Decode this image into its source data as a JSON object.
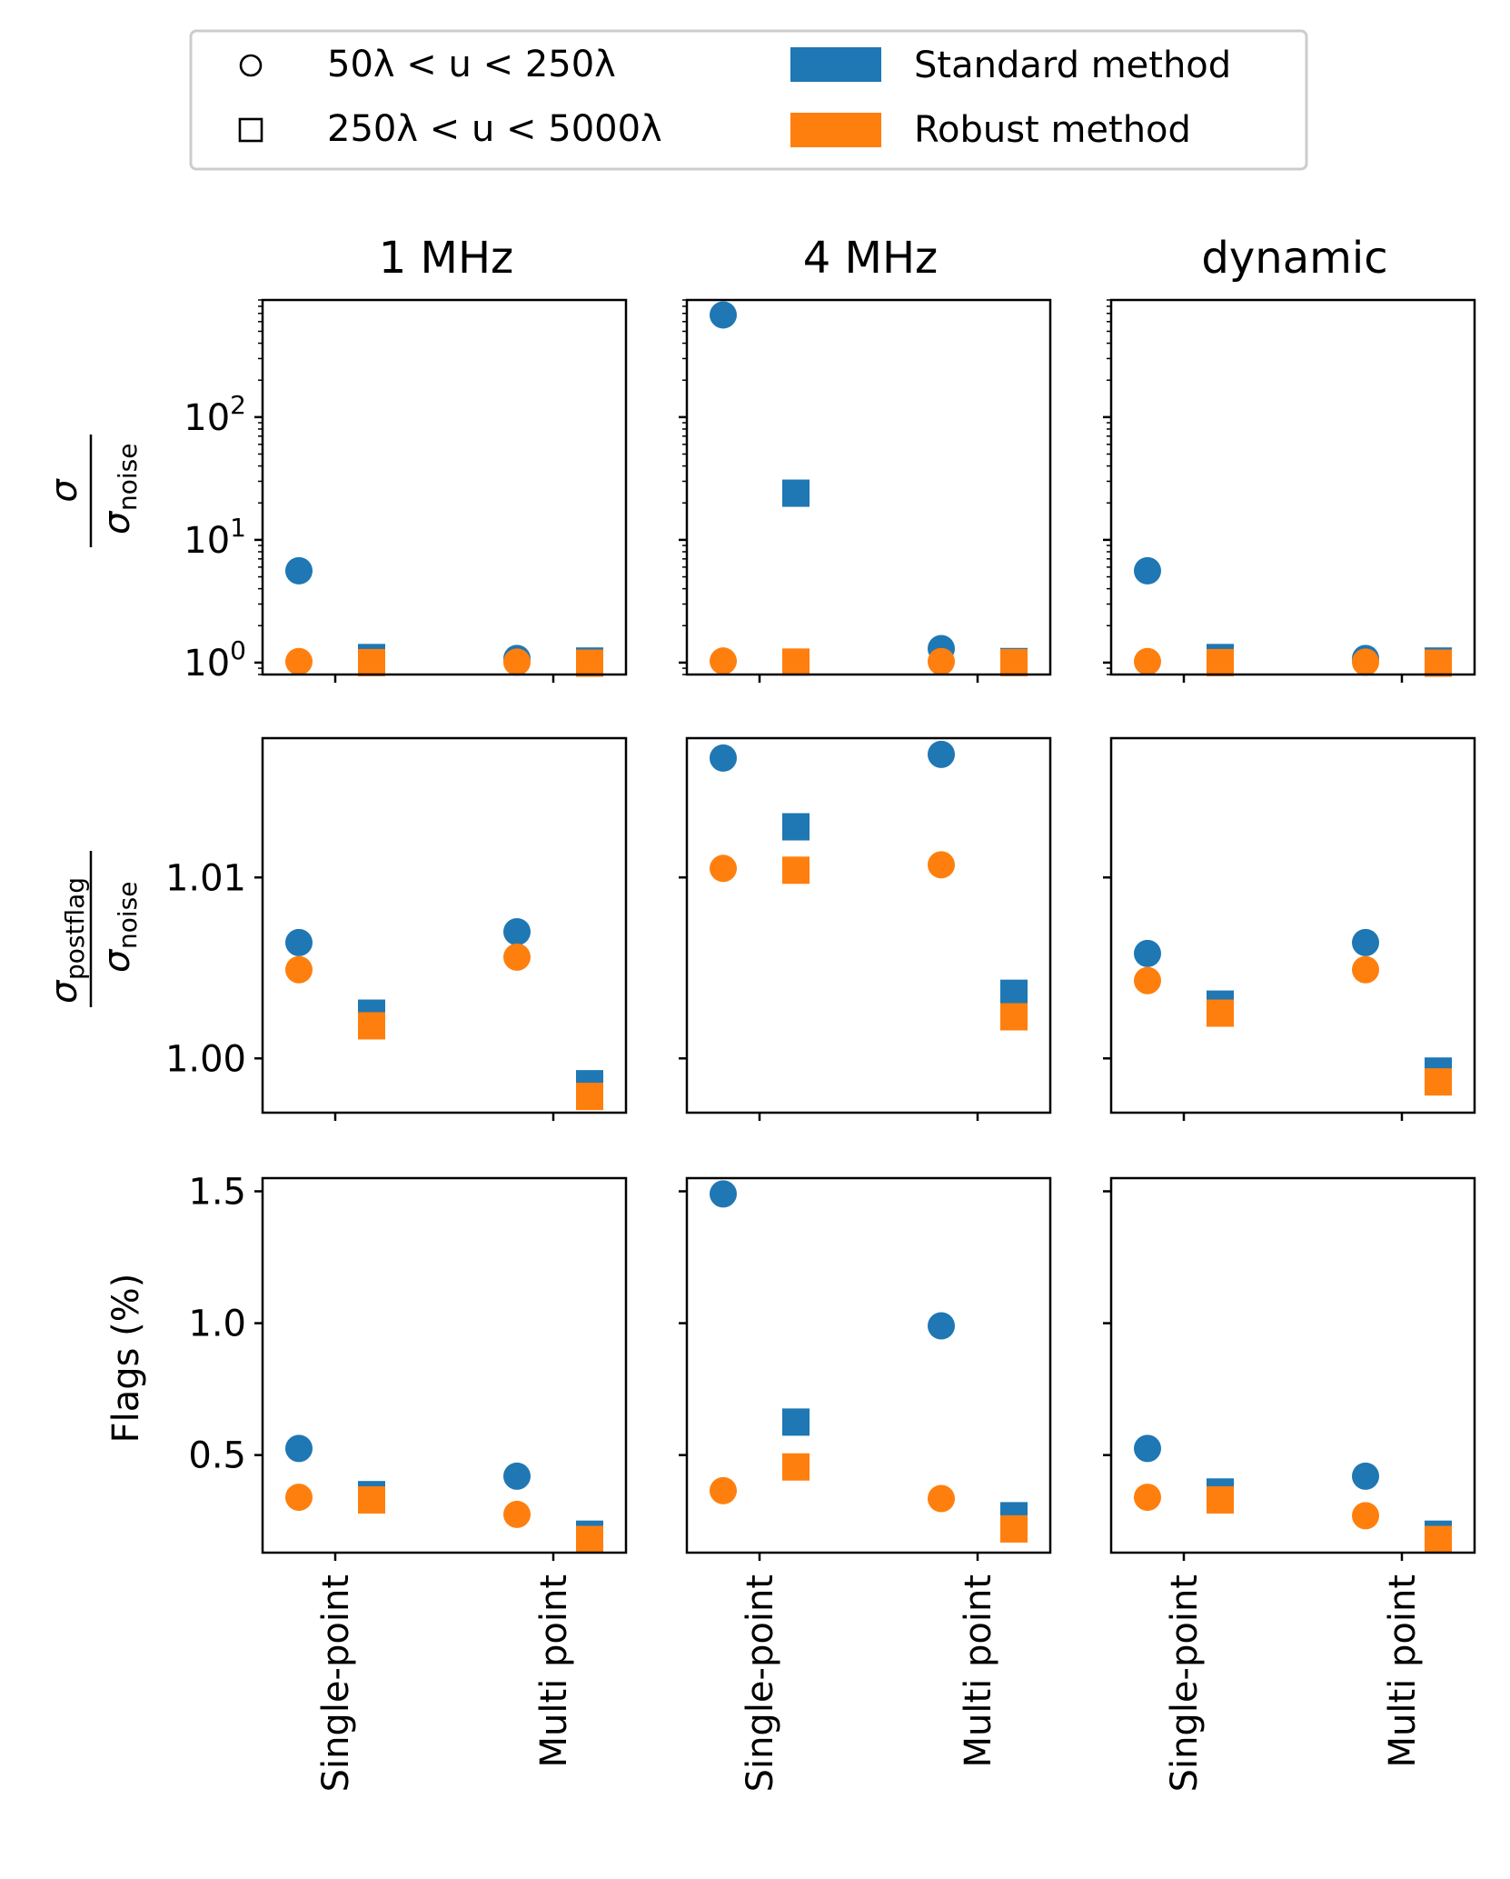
{
  "legend": {
    "entries": [
      {
        "marker": "circle",
        "label": "50λ < u < 250λ"
      },
      {
        "marker": "square",
        "label": "250λ < u < 5000λ"
      },
      {
        "marker": "patch",
        "color": "#1f77b4",
        "label": "Standard method"
      },
      {
        "marker": "patch",
        "color": "#ff7f0e",
        "label": "Robust method"
      }
    ]
  },
  "colors": {
    "standard": "#1f77b4",
    "robust": "#ff7f0e"
  },
  "columns": [
    "1 MHz",
    "4 MHz",
    "dynamic"
  ],
  "rows": [
    {
      "key": "sigma",
      "ylabel_main": "σ",
      "ylabel_main_sub": "",
      "ylabel_den": "σ",
      "ylabel_den_sub": "noise"
    },
    {
      "key": "postflag",
      "ylabel_main": "σ",
      "ylabel_main_sub": "postflag",
      "ylabel_den": "σ",
      "ylabel_den_sub": "noise"
    },
    {
      "key": "flags",
      "ylabel": "Flags (%)"
    }
  ],
  "x_categories": [
    "Single-point",
    "Multi point"
  ],
  "chart_data": [
    {
      "type": "scatter",
      "row": 0,
      "col": 0,
      "title": "1 MHz",
      "yscale": "log",
      "ylim": [
        0.8,
        900
      ],
      "yticks": [
        {
          "value": 1,
          "base": "10",
          "exp": "0"
        },
        {
          "value": 10,
          "base": "10",
          "exp": "1"
        },
        {
          "value": 100,
          "base": "10",
          "exp": "2"
        }
      ],
      "series": [
        {
          "name": "Standard 50λ<u<250λ",
          "marker": "circle",
          "method": "standard",
          "values": [
            5.6,
            1.08
          ]
        },
        {
          "name": "Robust 50λ<u<250λ",
          "marker": "circle",
          "method": "robust",
          "values": [
            1.02,
            1.01
          ]
        },
        {
          "name": "Standard 250λ<u<5000λ",
          "marker": "square",
          "method": "standard",
          "values": [
            1.1,
            1.03
          ]
        },
        {
          "name": "Robust 250λ<u<5000λ",
          "marker": "square",
          "method": "robust",
          "values": [
            1.0,
            0.99
          ]
        }
      ]
    },
    {
      "type": "scatter",
      "row": 0,
      "col": 1,
      "title": "4 MHz",
      "yscale": "log",
      "ylim": [
        0.8,
        900
      ],
      "yticks": [
        {
          "value": 1,
          "base": "10",
          "exp": "0"
        },
        {
          "value": 10,
          "base": "10",
          "exp": "1"
        },
        {
          "value": 100,
          "base": "10",
          "exp": "2"
        }
      ],
      "series": [
        {
          "name": "Standard 50λ<u<250λ",
          "marker": "circle",
          "method": "standard",
          "values": [
            680,
            1.3
          ]
        },
        {
          "name": "Robust 50λ<u<250λ",
          "marker": "circle",
          "method": "robust",
          "values": [
            1.03,
            1.02
          ]
        },
        {
          "name": "Standard 250λ<u<5000λ",
          "marker": "square",
          "method": "standard",
          "values": [
            24,
            1.02
          ]
        },
        {
          "name": "Robust 250λ<u<5000λ",
          "marker": "square",
          "method": "robust",
          "values": [
            1.01,
            1.0
          ]
        }
      ]
    },
    {
      "type": "scatter",
      "row": 0,
      "col": 2,
      "title": "dynamic",
      "yscale": "log",
      "ylim": [
        0.8,
        900
      ],
      "yticks": [
        {
          "value": 1,
          "base": "10",
          "exp": "0"
        },
        {
          "value": 10,
          "base": "10",
          "exp": "1"
        },
        {
          "value": 100,
          "base": "10",
          "exp": "2"
        }
      ],
      "series": [
        {
          "name": "Standard 50λ<u<250λ",
          "marker": "circle",
          "method": "standard",
          "values": [
            5.6,
            1.08
          ]
        },
        {
          "name": "Robust 50λ<u<250λ",
          "marker": "circle",
          "method": "robust",
          "values": [
            1.02,
            1.01
          ]
        },
        {
          "name": "Standard 250λ<u<5000λ",
          "marker": "square",
          "method": "standard",
          "values": [
            1.1,
            1.03
          ]
        },
        {
          "name": "Robust 250λ<u<5000λ",
          "marker": "square",
          "method": "robust",
          "values": [
            1.0,
            0.99
          ]
        }
      ]
    },
    {
      "type": "scatter",
      "row": 1,
      "col": 0,
      "yscale": "linear",
      "ylim": [
        0.997,
        1.0177
      ],
      "yticks": [
        {
          "value": 1.0,
          "label": "1.00"
        },
        {
          "value": 1.01,
          "label": "1.01"
        }
      ],
      "series": [
        {
          "name": "Standard 50λ<u<250λ",
          "marker": "circle",
          "method": "standard",
          "values": [
            1.0064,
            1.007
          ]
        },
        {
          "name": "Robust 50λ<u<250λ",
          "marker": "circle",
          "method": "robust",
          "values": [
            1.0049,
            1.0056
          ]
        },
        {
          "name": "Standard 250λ<u<5000λ",
          "marker": "square",
          "method": "standard",
          "values": [
            1.0025,
            0.9986
          ]
        },
        {
          "name": "Robust 250λ<u<5000λ",
          "marker": "square",
          "method": "robust",
          "values": [
            1.0018,
            0.9979
          ]
        }
      ]
    },
    {
      "type": "scatter",
      "row": 1,
      "col": 1,
      "yscale": "linear",
      "ylim": [
        0.997,
        1.0177
      ],
      "yticks": [
        {
          "value": 1.0,
          "label": ""
        },
        {
          "value": 1.01,
          "label": ""
        }
      ],
      "series": [
        {
          "name": "Standard 50λ<u<250λ",
          "marker": "circle",
          "method": "standard",
          "values": [
            1.0166,
            1.0168
          ]
        },
        {
          "name": "Robust 50λ<u<250λ",
          "marker": "circle",
          "method": "robust",
          "values": [
            1.0105,
            1.0107
          ]
        },
        {
          "name": "Standard 250λ<u<5000λ",
          "marker": "square",
          "method": "standard",
          "values": [
            1.0128,
            1.0036
          ]
        },
        {
          "name": "Robust 250λ<u<5000λ",
          "marker": "square",
          "method": "robust",
          "values": [
            1.0104,
            1.0023
          ]
        }
      ]
    },
    {
      "type": "scatter",
      "row": 1,
      "col": 2,
      "yscale": "linear",
      "ylim": [
        0.997,
        1.0177
      ],
      "yticks": [
        {
          "value": 1.0,
          "label": ""
        },
        {
          "value": 1.01,
          "label": ""
        }
      ],
      "series": [
        {
          "name": "Standard 50λ<u<250λ",
          "marker": "circle",
          "method": "standard",
          "values": [
            1.0058,
            1.0064
          ]
        },
        {
          "name": "Robust 50λ<u<250λ",
          "marker": "circle",
          "method": "robust",
          "values": [
            1.0043,
            1.0049
          ]
        },
        {
          "name": "Standard 250λ<u<5000λ",
          "marker": "square",
          "method": "standard",
          "values": [
            1.003,
            0.9993
          ]
        },
        {
          "name": "Robust 250λ<u<5000λ",
          "marker": "square",
          "method": "robust",
          "values": [
            1.0025,
            0.9987
          ]
        }
      ]
    },
    {
      "type": "scatter",
      "row": 2,
      "col": 0,
      "yscale": "linear",
      "ylim": [
        0.13,
        1.55
      ],
      "yticks": [
        {
          "value": 0.5,
          "label": "0.5"
        },
        {
          "value": 1.0,
          "label": "1.0"
        },
        {
          "value": 1.5,
          "label": "1.5"
        }
      ],
      "series": [
        {
          "name": "Standard 50λ<u<250λ",
          "marker": "circle",
          "method": "standard",
          "values": [
            0.525,
            0.42
          ]
        },
        {
          "name": "Robust 50λ<u<250λ",
          "marker": "circle",
          "method": "robust",
          "values": [
            0.34,
            0.275
          ]
        },
        {
          "name": "Standard 250λ<u<5000λ",
          "marker": "square",
          "method": "standard",
          "values": [
            0.35,
            0.2
          ]
        },
        {
          "name": "Robust 250λ<u<5000λ",
          "marker": "square",
          "method": "robust",
          "values": [
            0.33,
            0.18
          ]
        }
      ]
    },
    {
      "type": "scatter",
      "row": 2,
      "col": 1,
      "yscale": "linear",
      "ylim": [
        0.13,
        1.55
      ],
      "yticks": [
        {
          "value": 0.5,
          "label": ""
        },
        {
          "value": 1.0,
          "label": ""
        },
        {
          "value": 1.5,
          "label": ""
        }
      ],
      "series": [
        {
          "name": "Standard 50λ<u<250λ",
          "marker": "circle",
          "method": "standard",
          "values": [
            1.49,
            0.99
          ]
        },
        {
          "name": "Robust 50λ<u<250λ",
          "marker": "circle",
          "method": "robust",
          "values": [
            0.365,
            0.335
          ]
        },
        {
          "name": "Standard 250λ<u<5000λ",
          "marker": "square",
          "method": "standard",
          "values": [
            0.625,
            0.27
          ]
        },
        {
          "name": "Robust 250λ<u<5000λ",
          "marker": "square",
          "method": "robust",
          "values": [
            0.455,
            0.22
          ]
        }
      ]
    },
    {
      "type": "scatter",
      "row": 2,
      "col": 2,
      "yscale": "linear",
      "ylim": [
        0.13,
        1.55
      ],
      "yticks": [
        {
          "value": 0.5,
          "label": ""
        },
        {
          "value": 1.0,
          "label": ""
        },
        {
          "value": 1.5,
          "label": ""
        }
      ],
      "series": [
        {
          "name": "Standard 50λ<u<250λ",
          "marker": "circle",
          "method": "standard",
          "values": [
            0.525,
            0.42
          ]
        },
        {
          "name": "Robust 50λ<u<250λ",
          "marker": "circle",
          "method": "robust",
          "values": [
            0.34,
            0.27
          ]
        },
        {
          "name": "Standard 250λ<u<5000λ",
          "marker": "square",
          "method": "standard",
          "values": [
            0.36,
            0.2
          ]
        },
        {
          "name": "Robust 250λ<u<5000λ",
          "marker": "square",
          "method": "robust",
          "values": [
            0.33,
            0.18
          ]
        }
      ]
    }
  ]
}
